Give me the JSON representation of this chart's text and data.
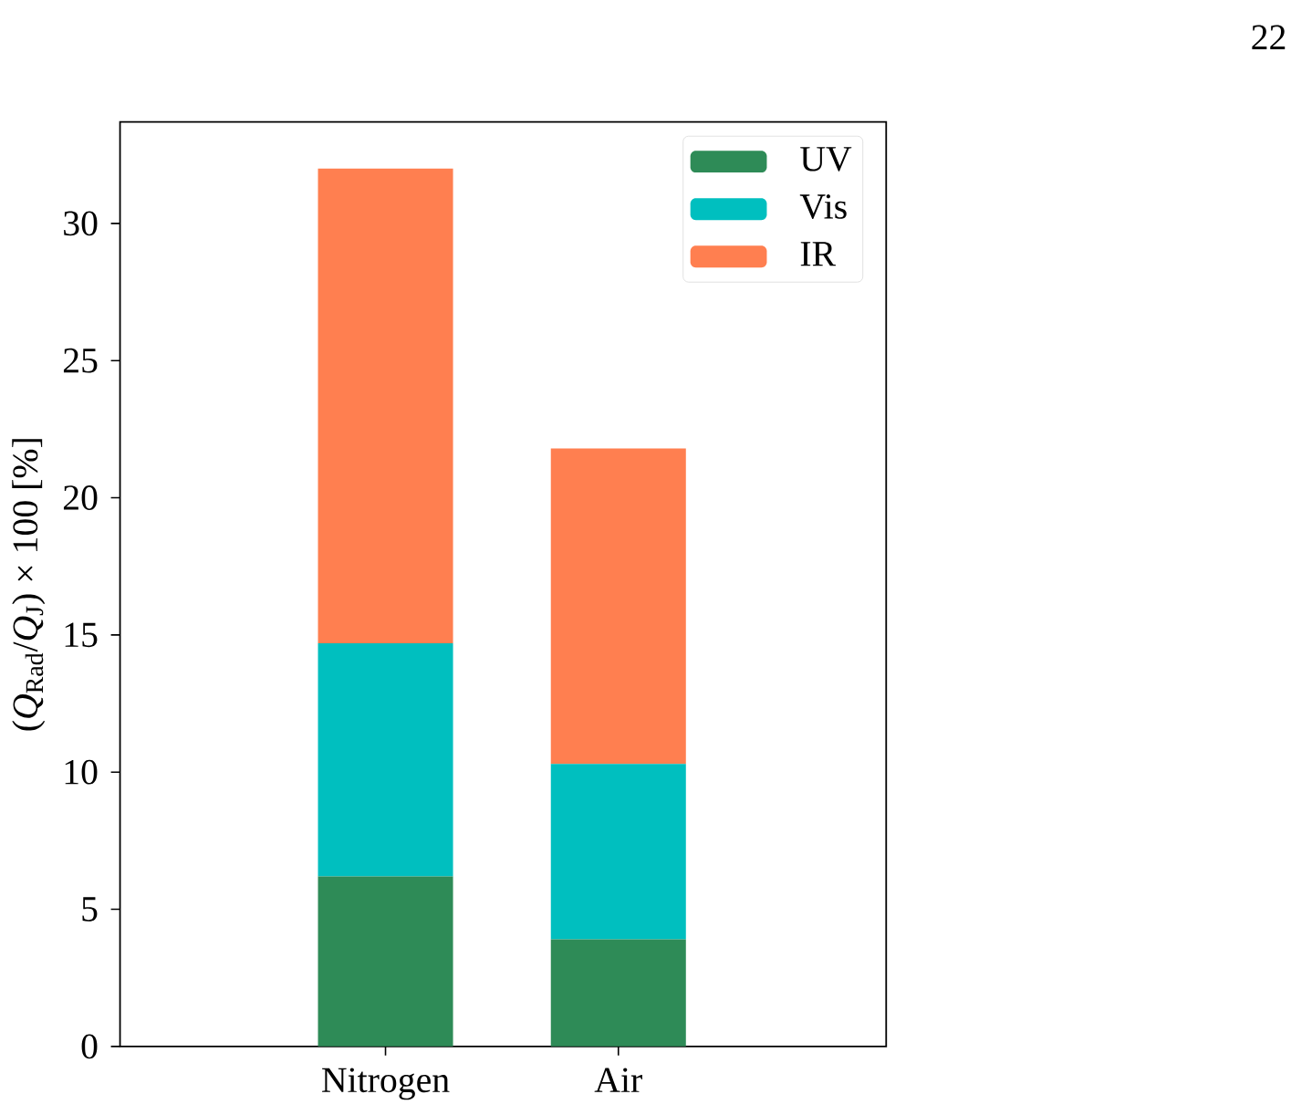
{
  "chart_data": {
    "type": "bar",
    "stacked": true,
    "ylabel": "(*Q*$_{Rad}$/*Q*$_{J}$) × 100 [%]",
    "annotations": [
      "22"
    ],
    "categories": [
      "Nitrogen",
      "Air"
    ],
    "series": [
      {
        "name": "UV",
        "color": "#2e8b57",
        "values": [
          6.2,
          3.9
        ]
      },
      {
        "name": "Vis",
        "color": "#00bfbf",
        "values": [
          8.5,
          6.4
        ]
      },
      {
        "name": "IR",
        "color": "#ff7f50",
        "values": [
          17.3,
          11.5
        ]
      }
    ],
    "ylim": [
      0,
      33.7
    ],
    "yticks": [
      0,
      5,
      10,
      15,
      20,
      25,
      30
    ],
    "legend": "top right",
    "grid": false
  }
}
